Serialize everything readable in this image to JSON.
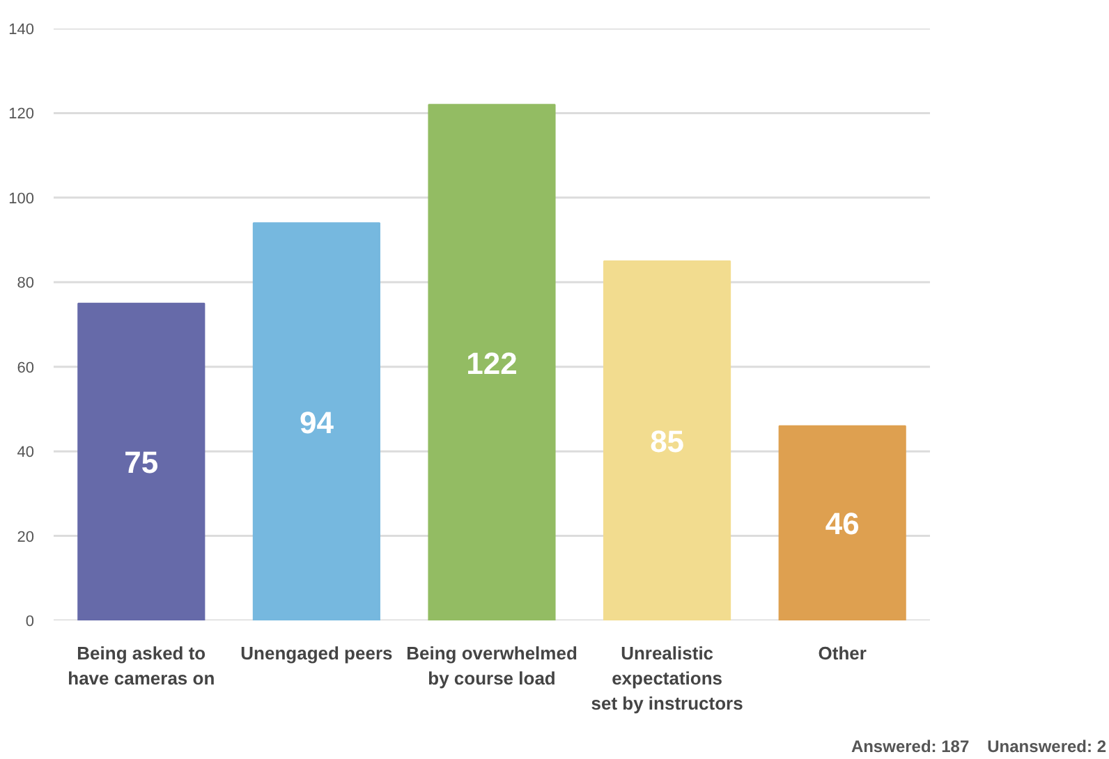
{
  "chart_data": {
    "type": "bar",
    "categories": [
      "Being asked to\nhave cameras on",
      "Unengaged peers",
      "Being overwhelmed\nby course load",
      "Unrealistic\nexpectations\nset by instructors",
      "Other"
    ],
    "values": [
      75,
      94,
      122,
      85,
      46
    ],
    "colors": [
      "#666aa9",
      "#76b8df",
      "#93bc63",
      "#f2dc8f",
      "#dea050"
    ],
    "ylim": [
      0,
      140
    ],
    "yticks": [
      0,
      20,
      40,
      60,
      80,
      100,
      120,
      140
    ],
    "grid": "y",
    "data_labels": true,
    "annotations": [
      "Answered: 187",
      "Unanswered: 2"
    ]
  }
}
